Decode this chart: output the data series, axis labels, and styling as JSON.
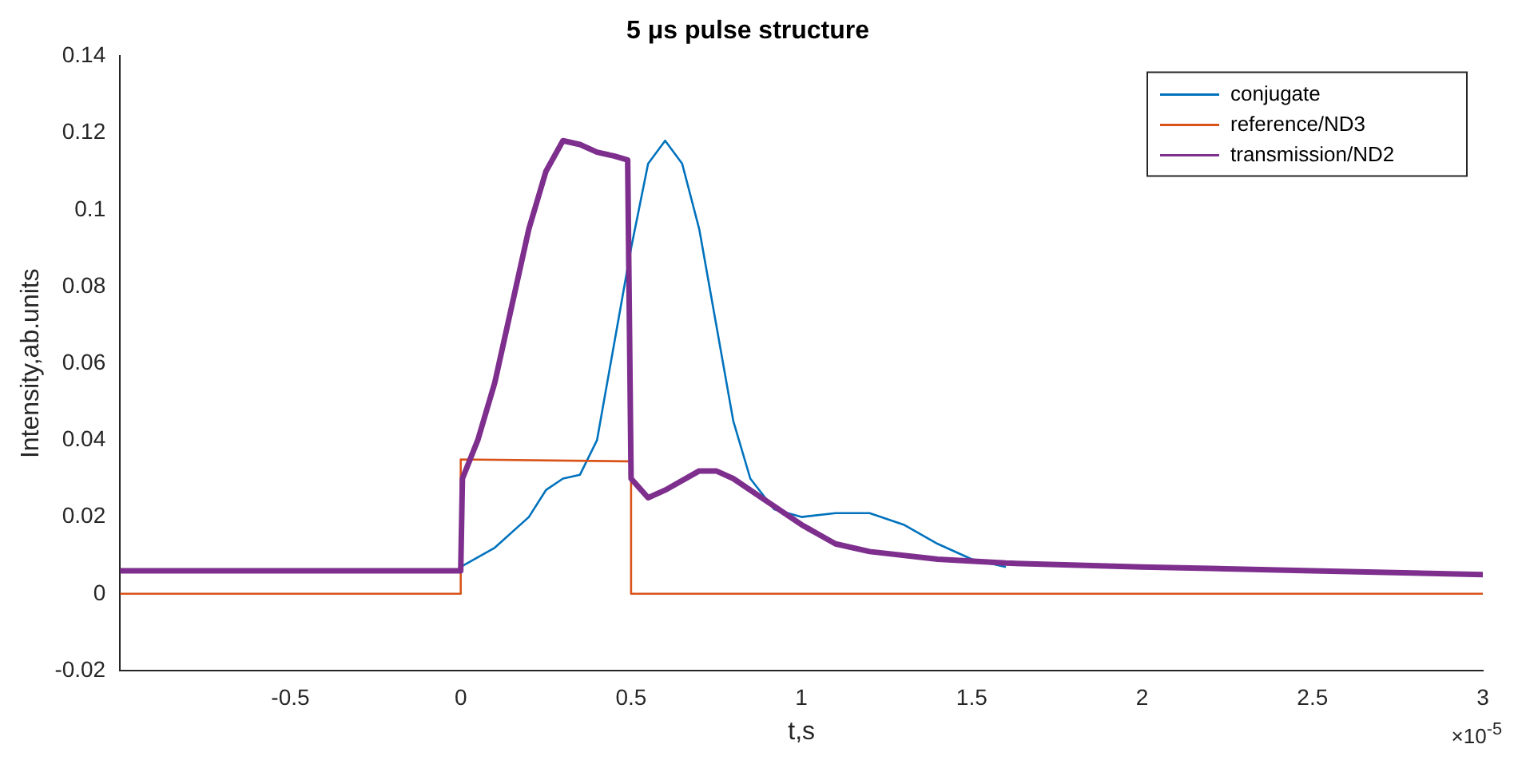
{
  "chart_data": {
    "type": "line",
    "title": "5 μs pulse structure",
    "xlabel": "t,s",
    "ylabel": "Intensity,ab.units",
    "annotations": [
      "×10$^{-5}$"
    ],
    "xlim": [
      -1,
      3
    ],
    "xticks": [
      -0.5,
      0,
      0.5,
      1,
      1.5,
      2,
      2.5,
      3
    ],
    "ylim": [
      -0.02,
      0.14
    ],
    "yticks": [
      -0.02,
      0,
      0.02,
      0.04,
      0.06,
      0.08,
      0.1,
      0.12,
      0.14
    ],
    "grid": false,
    "legend": "top right",
    "marker": "none",
    "line_style": "solid",
    "series": [
      {
        "name": "conjugate",
        "color": "#0072bd",
        "x": [
          0,
          0.1,
          0.2,
          0.25,
          0.3,
          0.35,
          0.4,
          0.45,
          0.5,
          0.55,
          0.6,
          0.65,
          0.7,
          0.75,
          0.8,
          0.85,
          0.92,
          1,
          1.1,
          1.2,
          1.3,
          1.4,
          1.5,
          1.6
        ],
        "values": [
          0.007,
          0.012,
          0.02,
          0.027,
          0.03,
          0.031,
          0.04,
          0.065,
          0.09,
          0.112,
          0.118,
          0.112,
          0.095,
          0.07,
          0.045,
          0.03,
          0.022,
          0.02,
          0.021,
          0.021,
          0.018,
          0.013,
          0.009,
          0.007
        ]
      },
      {
        "name": "reference/ND3",
        "color": "#d95319",
        "x": [
          -1,
          0,
          0,
          0.49,
          0.5,
          0.5,
          3
        ],
        "values": [
          0,
          0,
          0.035,
          0.0345,
          0.0345,
          0,
          0
        ]
      },
      {
        "name": "transmission/ND2",
        "color": "#7e2f8e",
        "x": [
          -1,
          0,
          0.005,
          0.05,
          0.1,
          0.15,
          0.2,
          0.25,
          0.3,
          0.35,
          0.4,
          0.45,
          0.49,
          0.5,
          0.52,
          0.55,
          0.6,
          0.7,
          0.75,
          0.8,
          0.9,
          1,
          1.1,
          1.2,
          1.4,
          1.6,
          2,
          2.5,
          3
        ],
        "values": [
          0.006,
          0.006,
          0.03,
          0.04,
          0.055,
          0.075,
          0.095,
          0.11,
          0.118,
          0.117,
          0.115,
          0.114,
          0.113,
          0.03,
          0.028,
          0.025,
          0.027,
          0.032,
          0.032,
          0.03,
          0.024,
          0.018,
          0.013,
          0.011,
          0.009,
          0.008,
          0.007,
          0.006,
          0.005
        ]
      }
    ]
  }
}
